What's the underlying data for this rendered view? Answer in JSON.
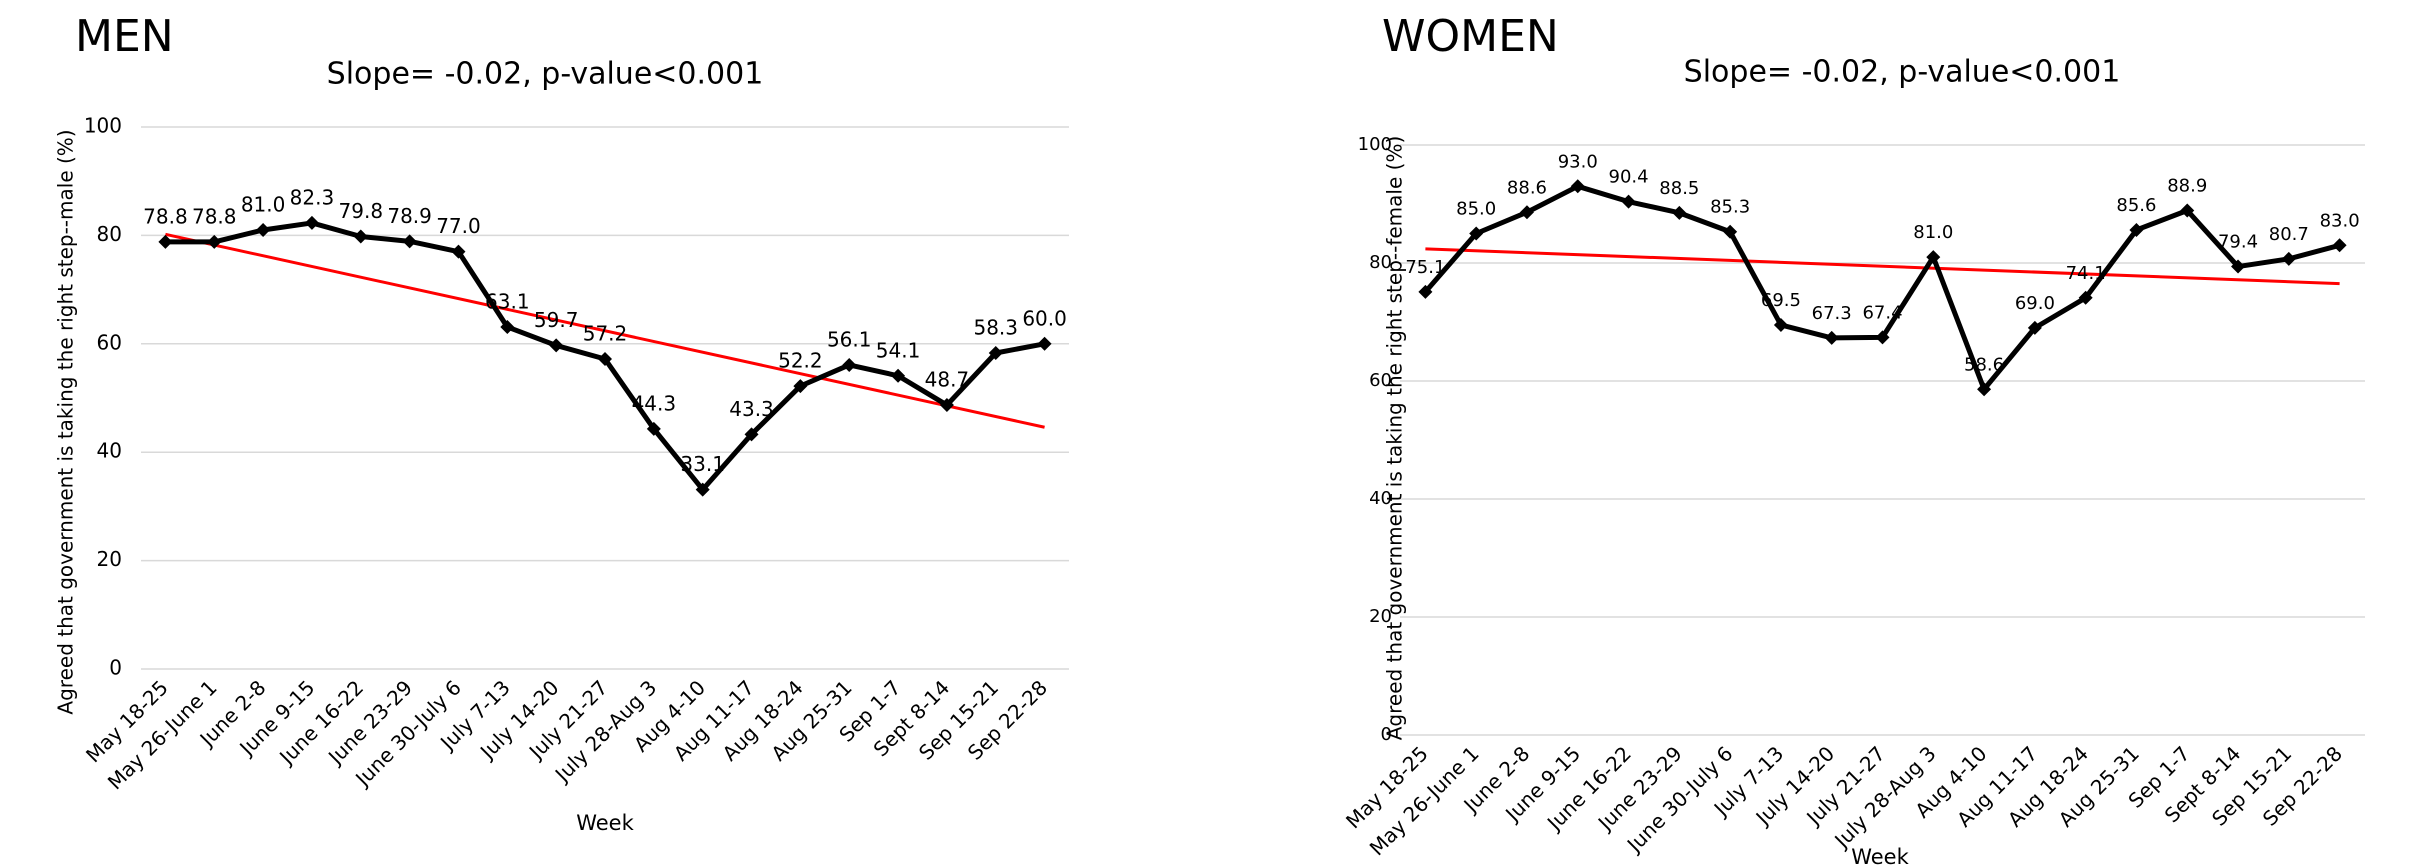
{
  "chart_data": [
    {
      "type": "line",
      "heading": "MEN",
      "title": "Slope= -0.02, p-value<0.001",
      "x_label": "Week",
      "y_label": "Agreed that government is taking the right step--male (%)",
      "categories": [
        "May 18-25",
        "May 26-June 1",
        "June 2-8",
        "June 9-15",
        "June 16-22",
        "June 23-29",
        "June 30-July 6",
        "July 7-13",
        "July 14-20",
        "July 21-27",
        "July 28-Aug 3",
        "Aug 4-10",
        "Aug 11-17",
        "Aug 18-24",
        "Aug 25-31",
        "Sep 1-7",
        "Sept 8-14",
        "Sep 15-21",
        "Sep 22-28"
      ],
      "series": [
        {
          "color": "#000000",
          "values": [
            78.8,
            78.8,
            81.0,
            82.3,
            79.8,
            78.9,
            77.0,
            63.1,
            59.7,
            57.2,
            44.3,
            33.1,
            43.3,
            52.2,
            56.1,
            54.1,
            48.7,
            58.3,
            60.0
          ],
          "value_labels": [
            "78.8",
            "78.8",
            "81.0",
            "82.3",
            "79.8",
            "78.9",
            "77.0",
            "63.1",
            "59.7",
            "57.2",
            "44.3",
            "33.1",
            "43.3",
            "52.2",
            "56.1",
            "54.1",
            "48.7",
            "58.3",
            "60.0"
          ]
        }
      ],
      "trend": {
        "color": "#ff0000",
        "start": 80.2,
        "end": 44.6
      },
      "ylim": [
        0,
        100
      ],
      "yticks": [
        0,
        20,
        40,
        60,
        80,
        100
      ],
      "grid": true
    },
    {
      "type": "line",
      "heading": "WOMEN",
      "title": "Slope= -0.02, p-value<0.001",
      "x_label": "Week",
      "y_label": "Agreed that government is taking the right step--female (%)",
      "categories": [
        "May 18-25",
        "May 26-June 1",
        "June 2-8",
        "June 9-15",
        "June 16-22",
        "June 23-29",
        "June 30-July 6",
        "July 7-13",
        "July 14-20",
        "July 21-27",
        "July 28-Aug 3",
        "Aug 4-10",
        "Aug 11-17",
        "Aug 18-24",
        "Aug 25-31",
        "Sep 1-7",
        "Sept 8-14",
        "Sep 15-21",
        "Sep 22-28"
      ],
      "series": [
        {
          "color": "#000000",
          "values": [
            75.1,
            85.0,
            88.6,
            93.0,
            90.4,
            88.5,
            85.3,
            69.5,
            67.3,
            67.4,
            81.0,
            58.6,
            69.0,
            74.1,
            85.6,
            88.9,
            79.4,
            80.7,
            83.0
          ],
          "value_labels": [
            "75.1",
            "85.0",
            "88.6",
            "93.0",
            "90.4",
            "88.5",
            "85.3",
            "69.5",
            "67.3",
            "67.4",
            "81.0",
            "58.6",
            "69.0",
            "74.1",
            "85.6",
            "88.9",
            "79.4",
            "80.7",
            "83.0"
          ]
        }
      ],
      "trend": {
        "color": "#ff0000",
        "start": 82.4,
        "end": 76.5
      },
      "ylim": [
        0,
        100
      ],
      "yticks": [
        0,
        20,
        40,
        60,
        80,
        100
      ],
      "grid": true
    }
  ]
}
